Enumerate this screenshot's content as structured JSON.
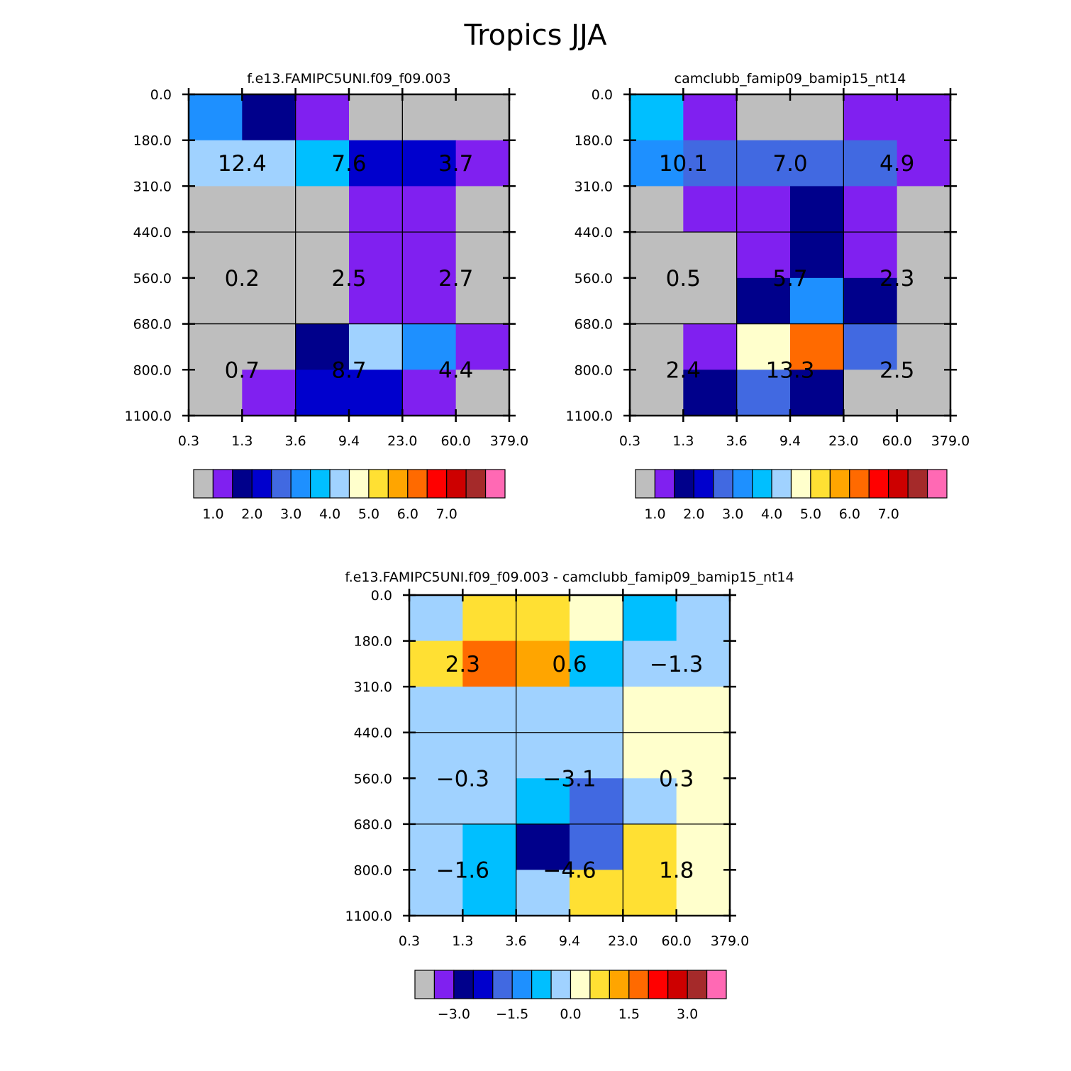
{
  "figure": {
    "title": "Tropics JJA"
  },
  "colors": {
    "palette": [
      "#bebebe",
      "#8020f0",
      "#00008b",
      "#0000cd",
      "#4169e1",
      "#1e90ff",
      "#00bfff",
      "#a0d2ff",
      "#ffffcc",
      "#ffe033",
      "#ffa500",
      "#ff6a00",
      "#ff0000",
      "#cd0000",
      "#a52a2a",
      "#ff69b4"
    ]
  },
  "chart_data": [
    {
      "type": "heatmap",
      "title": "f.e13.FAMIPC5UNI.f09_f09.003",
      "x_tick_labels": [
        "0.3",
        "1.3",
        "3.6",
        "9.4",
        "23.0",
        "60.0",
        "379.0"
      ],
      "y_tick_labels": [
        "0.0",
        "180.0",
        "310.0",
        "440.0",
        "560.0",
        "680.0",
        "800.0",
        "1100.0"
      ],
      "cell_color_index": [
        [
          5,
          2,
          1,
          0,
          0,
          0
        ],
        [
          7,
          7,
          6,
          3,
          3,
          1
        ],
        [
          0,
          0,
          0,
          1,
          1,
          0
        ],
        [
          0,
          0,
          0,
          1,
          1,
          0
        ],
        [
          0,
          0,
          0,
          1,
          1,
          0
        ],
        [
          0,
          0,
          2,
          7,
          5,
          1
        ],
        [
          0,
          1,
          3,
          3,
          1,
          0
        ]
      ],
      "group_values": [
        [
          "12.4",
          "7.6",
          "3.7"
        ],
        [
          "0.2",
          "2.5",
          "2.7"
        ],
        [
          "0.7",
          "8.7",
          "4.4"
        ]
      ],
      "colorbar": {
        "labels": [
          "1.0",
          "2.0",
          "3.0",
          "4.0",
          "5.0",
          "6.0",
          "7.0"
        ],
        "label_box_index": [
          1,
          3,
          5,
          7,
          9,
          11,
          13
        ]
      }
    },
    {
      "type": "heatmap",
      "title": "camclubb_famip09_bamip15_nt14",
      "x_tick_labels": [
        "0.3",
        "1.3",
        "3.6",
        "9.4",
        "23.0",
        "60.0",
        "379.0"
      ],
      "y_tick_labels": [
        "0.0",
        "180.0",
        "310.0",
        "440.0",
        "560.0",
        "680.0",
        "800.0",
        "1100.0"
      ],
      "cell_color_index": [
        [
          6,
          1,
          0,
          0,
          1,
          1
        ],
        [
          5,
          4,
          4,
          4,
          4,
          1
        ],
        [
          0,
          1,
          1,
          2,
          1,
          0
        ],
        [
          0,
          0,
          1,
          2,
          1,
          0
        ],
        [
          0,
          0,
          2,
          5,
          2,
          0
        ],
        [
          0,
          1,
          8,
          11,
          4,
          0
        ],
        [
          0,
          2,
          4,
          2,
          0,
          0
        ]
      ],
      "group_values": [
        [
          "10.1",
          "7.0",
          "4.9"
        ],
        [
          "0.5",
          "5.7",
          "2.3"
        ],
        [
          "2.4",
          "13.3",
          "2.5"
        ]
      ],
      "colorbar": {
        "labels": [
          "1.0",
          "2.0",
          "3.0",
          "4.0",
          "5.0",
          "6.0",
          "7.0"
        ],
        "label_box_index": [
          1,
          3,
          5,
          7,
          9,
          11,
          13
        ]
      }
    },
    {
      "type": "heatmap",
      "title": "f.e13.FAMIPC5UNI.f09_f09.003 - camclubb_famip09_bamip15_nt14",
      "x_tick_labels": [
        "0.3",
        "1.3",
        "3.6",
        "9.4",
        "23.0",
        "60.0",
        "379.0"
      ],
      "y_tick_labels": [
        "0.0",
        "180.0",
        "310.0",
        "440.0",
        "560.0",
        "680.0",
        "800.0",
        "1100.0"
      ],
      "cell_color_index": [
        [
          7,
          9,
          9,
          8,
          6,
          7
        ],
        [
          9,
          11,
          10,
          6,
          7,
          7
        ],
        [
          7,
          7,
          7,
          7,
          8,
          8
        ],
        [
          7,
          7,
          7,
          7,
          8,
          8
        ],
        [
          7,
          7,
          6,
          4,
          7,
          8
        ],
        [
          7,
          6,
          2,
          4,
          9,
          8
        ],
        [
          7,
          6,
          7,
          9,
          9,
          8
        ]
      ],
      "group_values": [
        [
          "2.3",
          "0.6",
          "−1.3"
        ],
        [
          "−0.3",
          "−3.1",
          "0.3"
        ],
        [
          "−1.6",
          "−4.6",
          "1.8"
        ]
      ],
      "colorbar": {
        "labels": [
          "−3.0",
          "−1.5",
          "0.0",
          "1.5",
          "3.0"
        ],
        "label_box_index": [
          2,
          5,
          8,
          11,
          14
        ]
      }
    }
  ]
}
